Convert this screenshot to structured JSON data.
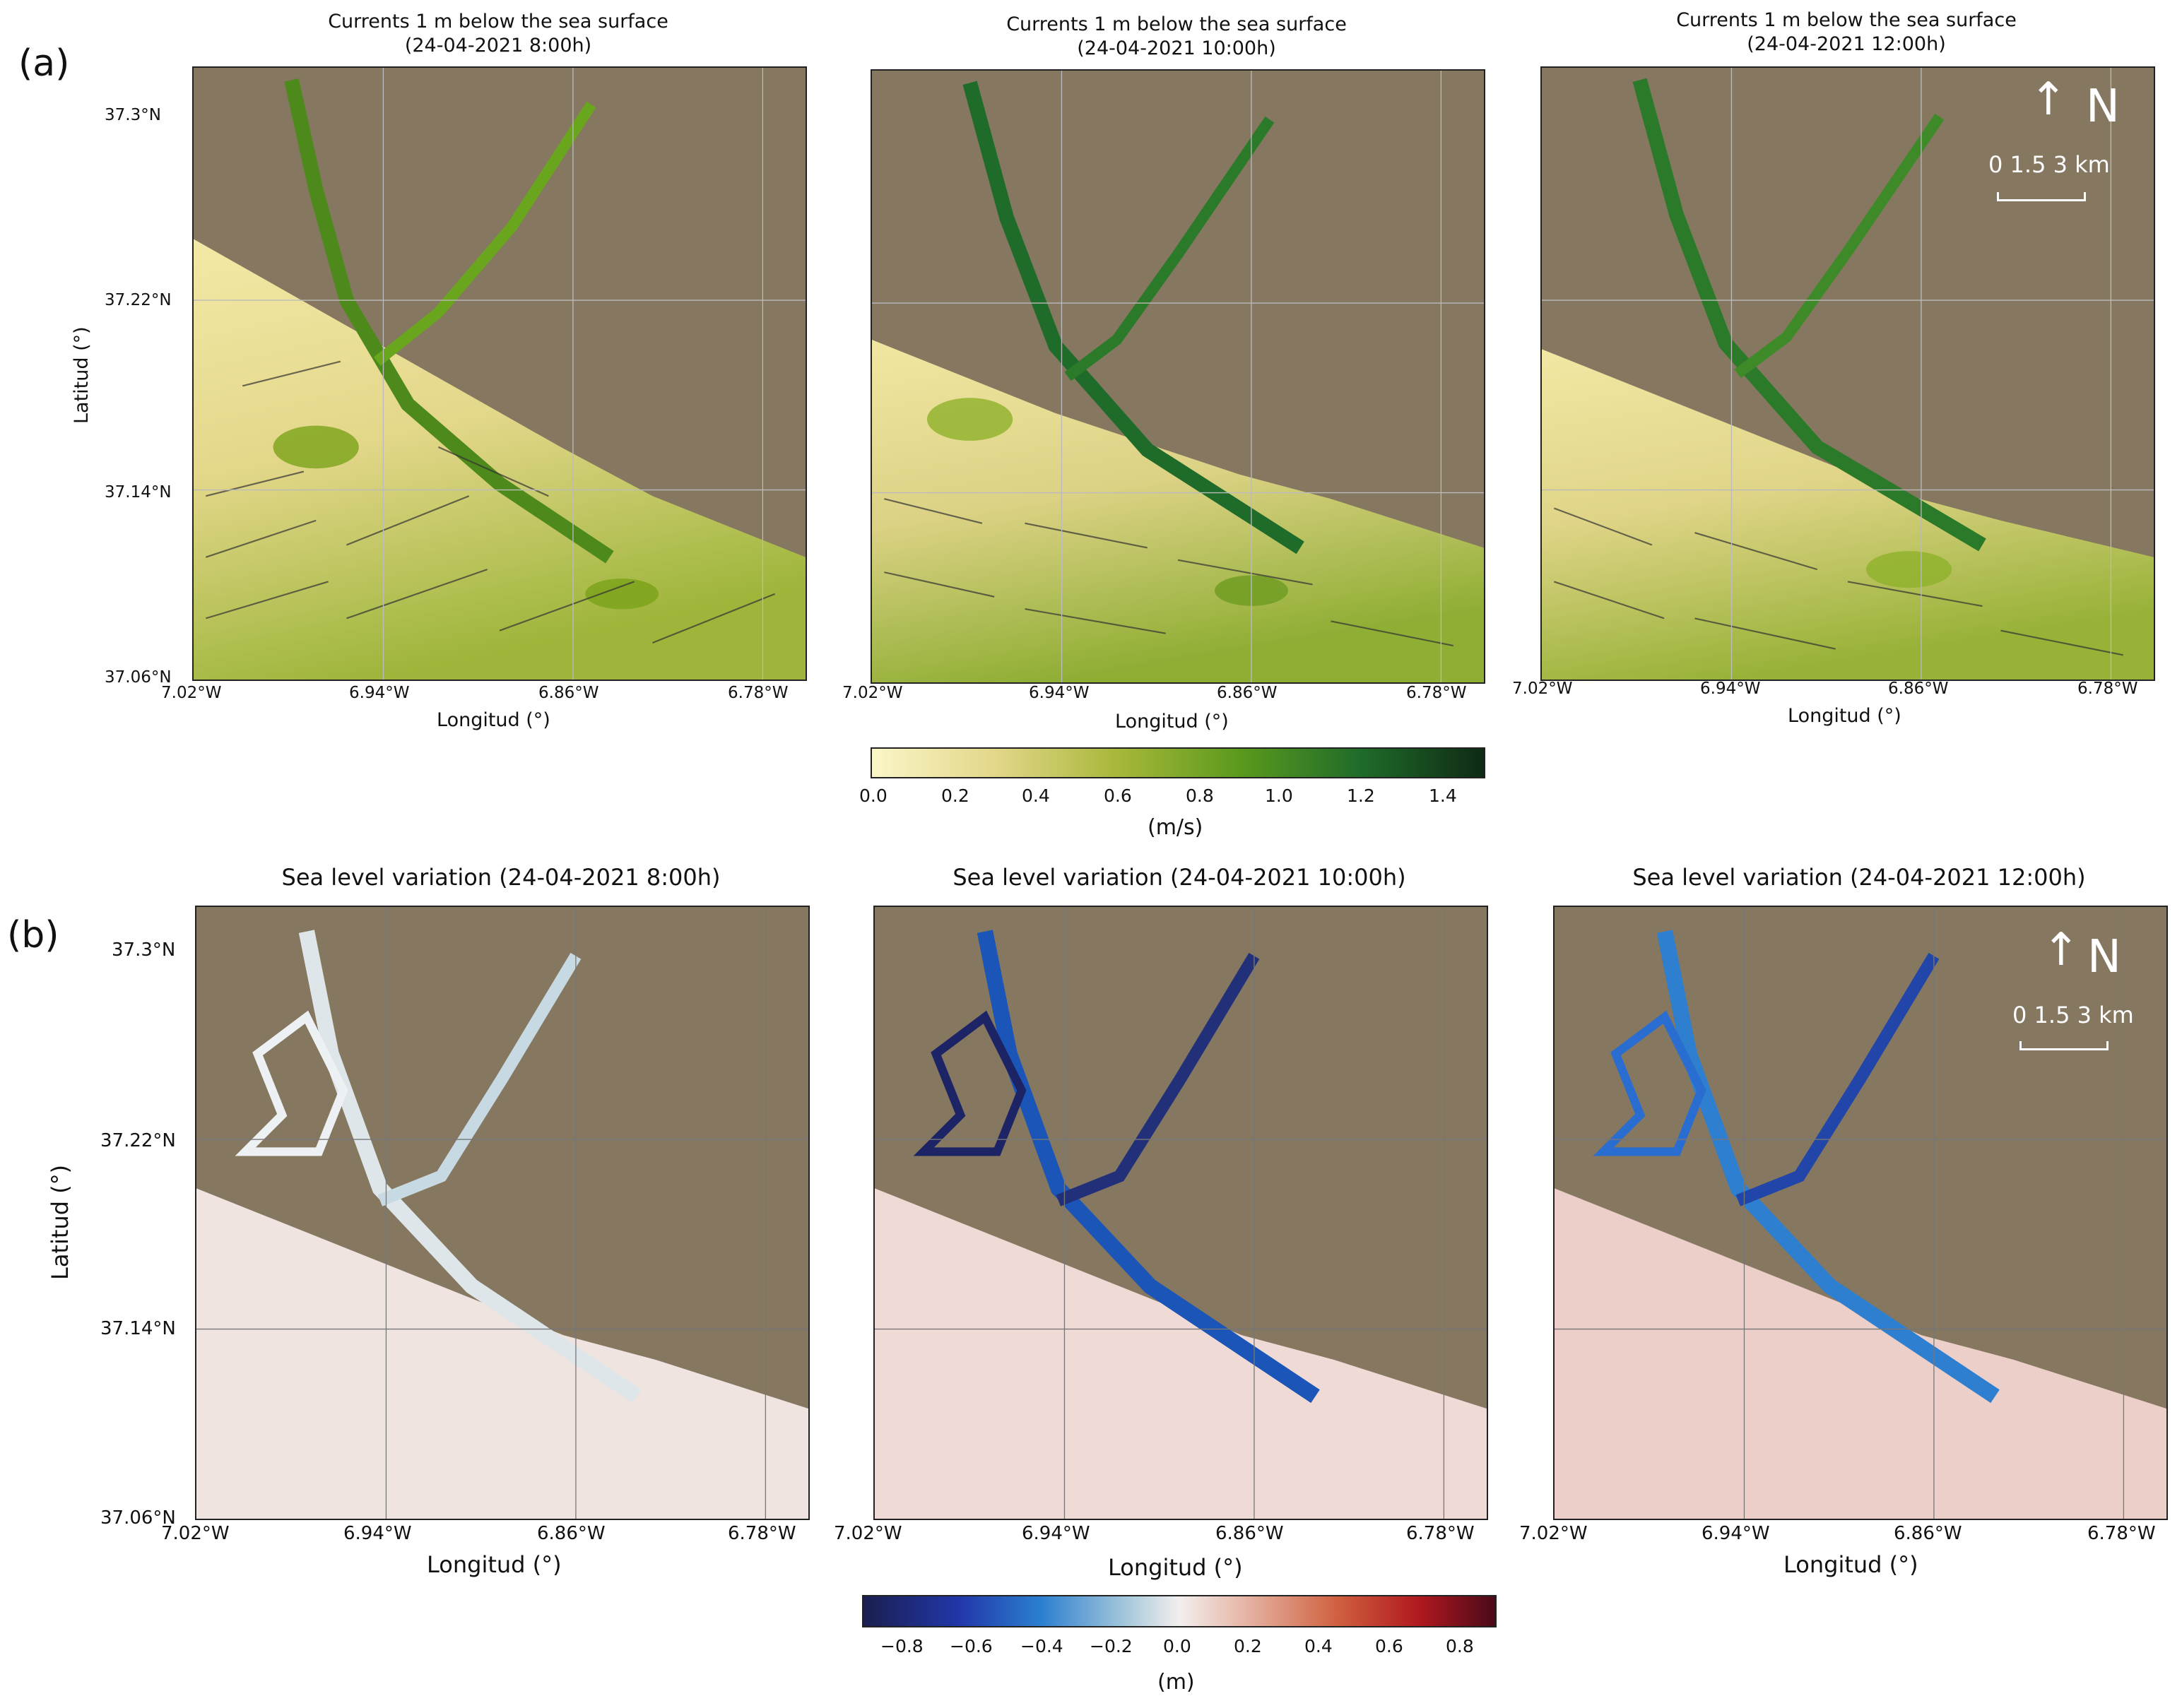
{
  "figure": {
    "panel_a_label": "(a)",
    "panel_b_label": "(b)"
  },
  "panel_a": {
    "titles": [
      "Currents 1 m below the sea surface\n(24-04-2021 8:00h)",
      "Currents 1 m below the sea surface\n(24-04-2021 10:00h)",
      "Currents 1 m below the sea surface\n(24-04-2021 12:00h)"
    ],
    "xlabel": "Longitud (°)",
    "ylabel": "Latitud (°)",
    "x_ticks": [
      "7.02°W",
      "6.94°W",
      "6.86°W",
      "6.78°W"
    ],
    "y_ticks": [
      "37.3°N",
      "37.22°N",
      "37.14°N",
      "37.06°N"
    ],
    "colorbar": {
      "label": "(m/s)",
      "ticks": [
        "0.0",
        "0.2",
        "0.4",
        "0.6",
        "0.8",
        "1.0",
        "1.2",
        "1.4"
      ],
      "range": [
        0.0,
        1.5
      ]
    }
  },
  "panel_b": {
    "titles": [
      "Sea level variation (24-04-2021 8:00h)",
      "Sea level variation (24-04-2021 10:00h)",
      "Sea level variation (24-04-2021 12:00h)"
    ],
    "xlabel": "Longitud (°)",
    "ylabel": "Latitud (°)",
    "x_ticks": [
      "7.02°W",
      "6.94°W",
      "6.86°W",
      "6.78°W"
    ],
    "y_ticks": [
      "37.3°N",
      "37.22°N",
      "37.14°N",
      "37.06°N"
    ],
    "colorbar": {
      "label": "(m)",
      "ticks": [
        "−0.8",
        "−0.6",
        "−0.4",
        "−0.2",
        "0.0",
        "0.2",
        "0.4",
        "0.6",
        "0.8"
      ],
      "range": [
        -0.9,
        0.9
      ]
    }
  },
  "map_overlay": {
    "north_symbol": "N",
    "scale_label": "0  1.5  3 km"
  },
  "colors": {
    "speed_low": "#f6f0b4",
    "speed_mid": "#7aa318",
    "speed_high": "#0f3d1c",
    "level_neg": "#1a1f6b",
    "level_zero": "#f3efee",
    "level_pos": "#6b0f1e",
    "land": "#8b7d66"
  }
}
